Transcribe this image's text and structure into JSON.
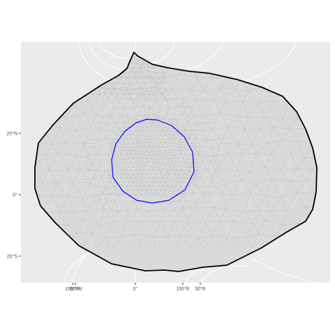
{
  "chart_data": {
    "type": "map",
    "title": "",
    "xlabel": "",
    "ylabel": "",
    "grid": true,
    "legend": "none",
    "colors": {
      "panel_background": "#ebebeb",
      "graticule": "#ffffff",
      "outer_boundary": "#000000",
      "inner_boundary": "#0000ff",
      "mesh_fill": "#dadada",
      "mesh_lines": "#bdbdbd"
    },
    "y_ticks": [
      {
        "label": "20°N",
        "value": 20
      },
      {
        "label": "0°",
        "value": 0
      },
      {
        "label": "20°S",
        "value": -20
      }
    ],
    "x_tick_labels": [
      "150°W",
      "50°W",
      "0°",
      "150°E",
      "50°E"
    ],
    "series": [
      {
        "role": "outer-boundary"
      },
      {
        "role": "inner-boundary"
      }
    ]
  }
}
